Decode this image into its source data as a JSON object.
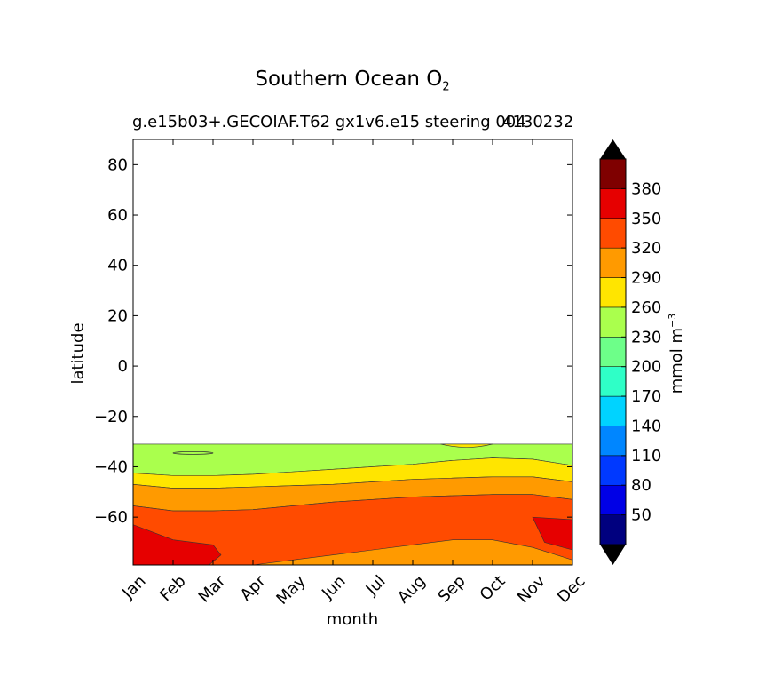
{
  "figure": {
    "title_main": "Southern Ocean O",
    "title_sub": "2",
    "subtitle_left": "g.e15b03+.GECOIAF.T62 gx1v6.e15 steering 004",
    "subtitle_right": "4130232",
    "colorbar_label_main": "mmol m",
    "colorbar_label_exp": "−3"
  },
  "chart_data": {
    "type": "heatmap",
    "subtype": "filled-contour",
    "title": "Southern Ocean O2",
    "subtitle": "g.e15b03+.GECOIAF.T62 gx1v6.e15 steering 004 4130232",
    "xlabel": "month",
    "ylabel": "latitude",
    "x_categories": [
      "Jan",
      "Feb",
      "Mar",
      "Apr",
      "May",
      "Jun",
      "Jul",
      "Aug",
      "Sep",
      "Oct",
      "Nov",
      "Dec"
    ],
    "y_ticks": [
      -60,
      -40,
      -20,
      0,
      20,
      40,
      60,
      80
    ],
    "ylim": [
      -79,
      90
    ],
    "data_ylim": [
      -79,
      -31
    ],
    "colorbar": {
      "label": "mmol m-3",
      "levels": [
        20,
        50,
        80,
        110,
        140,
        170,
        200,
        230,
        260,
        290,
        320,
        350,
        380,
        410
      ],
      "tick_labels": [
        "50",
        "80",
        "110",
        "140",
        "170",
        "200",
        "230",
        "260",
        "290",
        "320",
        "350",
        "380"
      ],
      "colors": [
        "#00007f",
        "#0000e6",
        "#0039ff",
        "#0086ff",
        "#00d3ff",
        "#2fffc7",
        "#6dff89",
        "#aaff4d",
        "#ffe500",
        "#ff9a00",
        "#ff4b00",
        "#e60000",
        "#7f0000"
      ],
      "extend_low_color": "#000000",
      "extend_high_color": "#000000"
    },
    "contour_boundaries_latitude_by_month": {
      "months": [
        1,
        2,
        3,
        4,
        5,
        6,
        7,
        8,
        9,
        10,
        11,
        12
      ],
      "level_260_lower_edge_of_230_band": [
        -42.5,
        -43.5,
        -43.5,
        -43,
        -42,
        -41,
        -40,
        -39,
        -37.5,
        -36.5,
        -37,
        -39.5
      ],
      "level_290_lower_edge_of_260_band": [
        -47,
        -48.5,
        -48.5,
        -48,
        -47.5,
        -47,
        -46,
        -45,
        -44.5,
        -44,
        -44,
        -46
      ],
      "level_320_lower_edge_of_290_band": [
        -55.5,
        -57.5,
        -57.5,
        -57,
        -55.5,
        -54,
        -53,
        -52,
        -51.5,
        -51,
        -51,
        -53
      ],
      "level_350_upper_edge_of_red_band": [
        -63,
        -69,
        -71,
        null,
        null,
        null,
        null,
        null,
        null,
        null,
        -60,
        -61
      ],
      "level_320_upper_edge_of_lower_290_band": [
        null,
        null,
        null,
        -79,
        -77,
        -75,
        -73,
        -71,
        -69,
        -69,
        -72,
        -77
      ]
    },
    "annotations": [
      {
        "text": "small 230 contour island",
        "month_range": [
          2,
          3
        ],
        "latitude": -34.5
      },
      {
        "text": "small 260 patch",
        "month_range": [
          8.7,
          10
        ],
        "latitude": -32
      }
    ]
  }
}
